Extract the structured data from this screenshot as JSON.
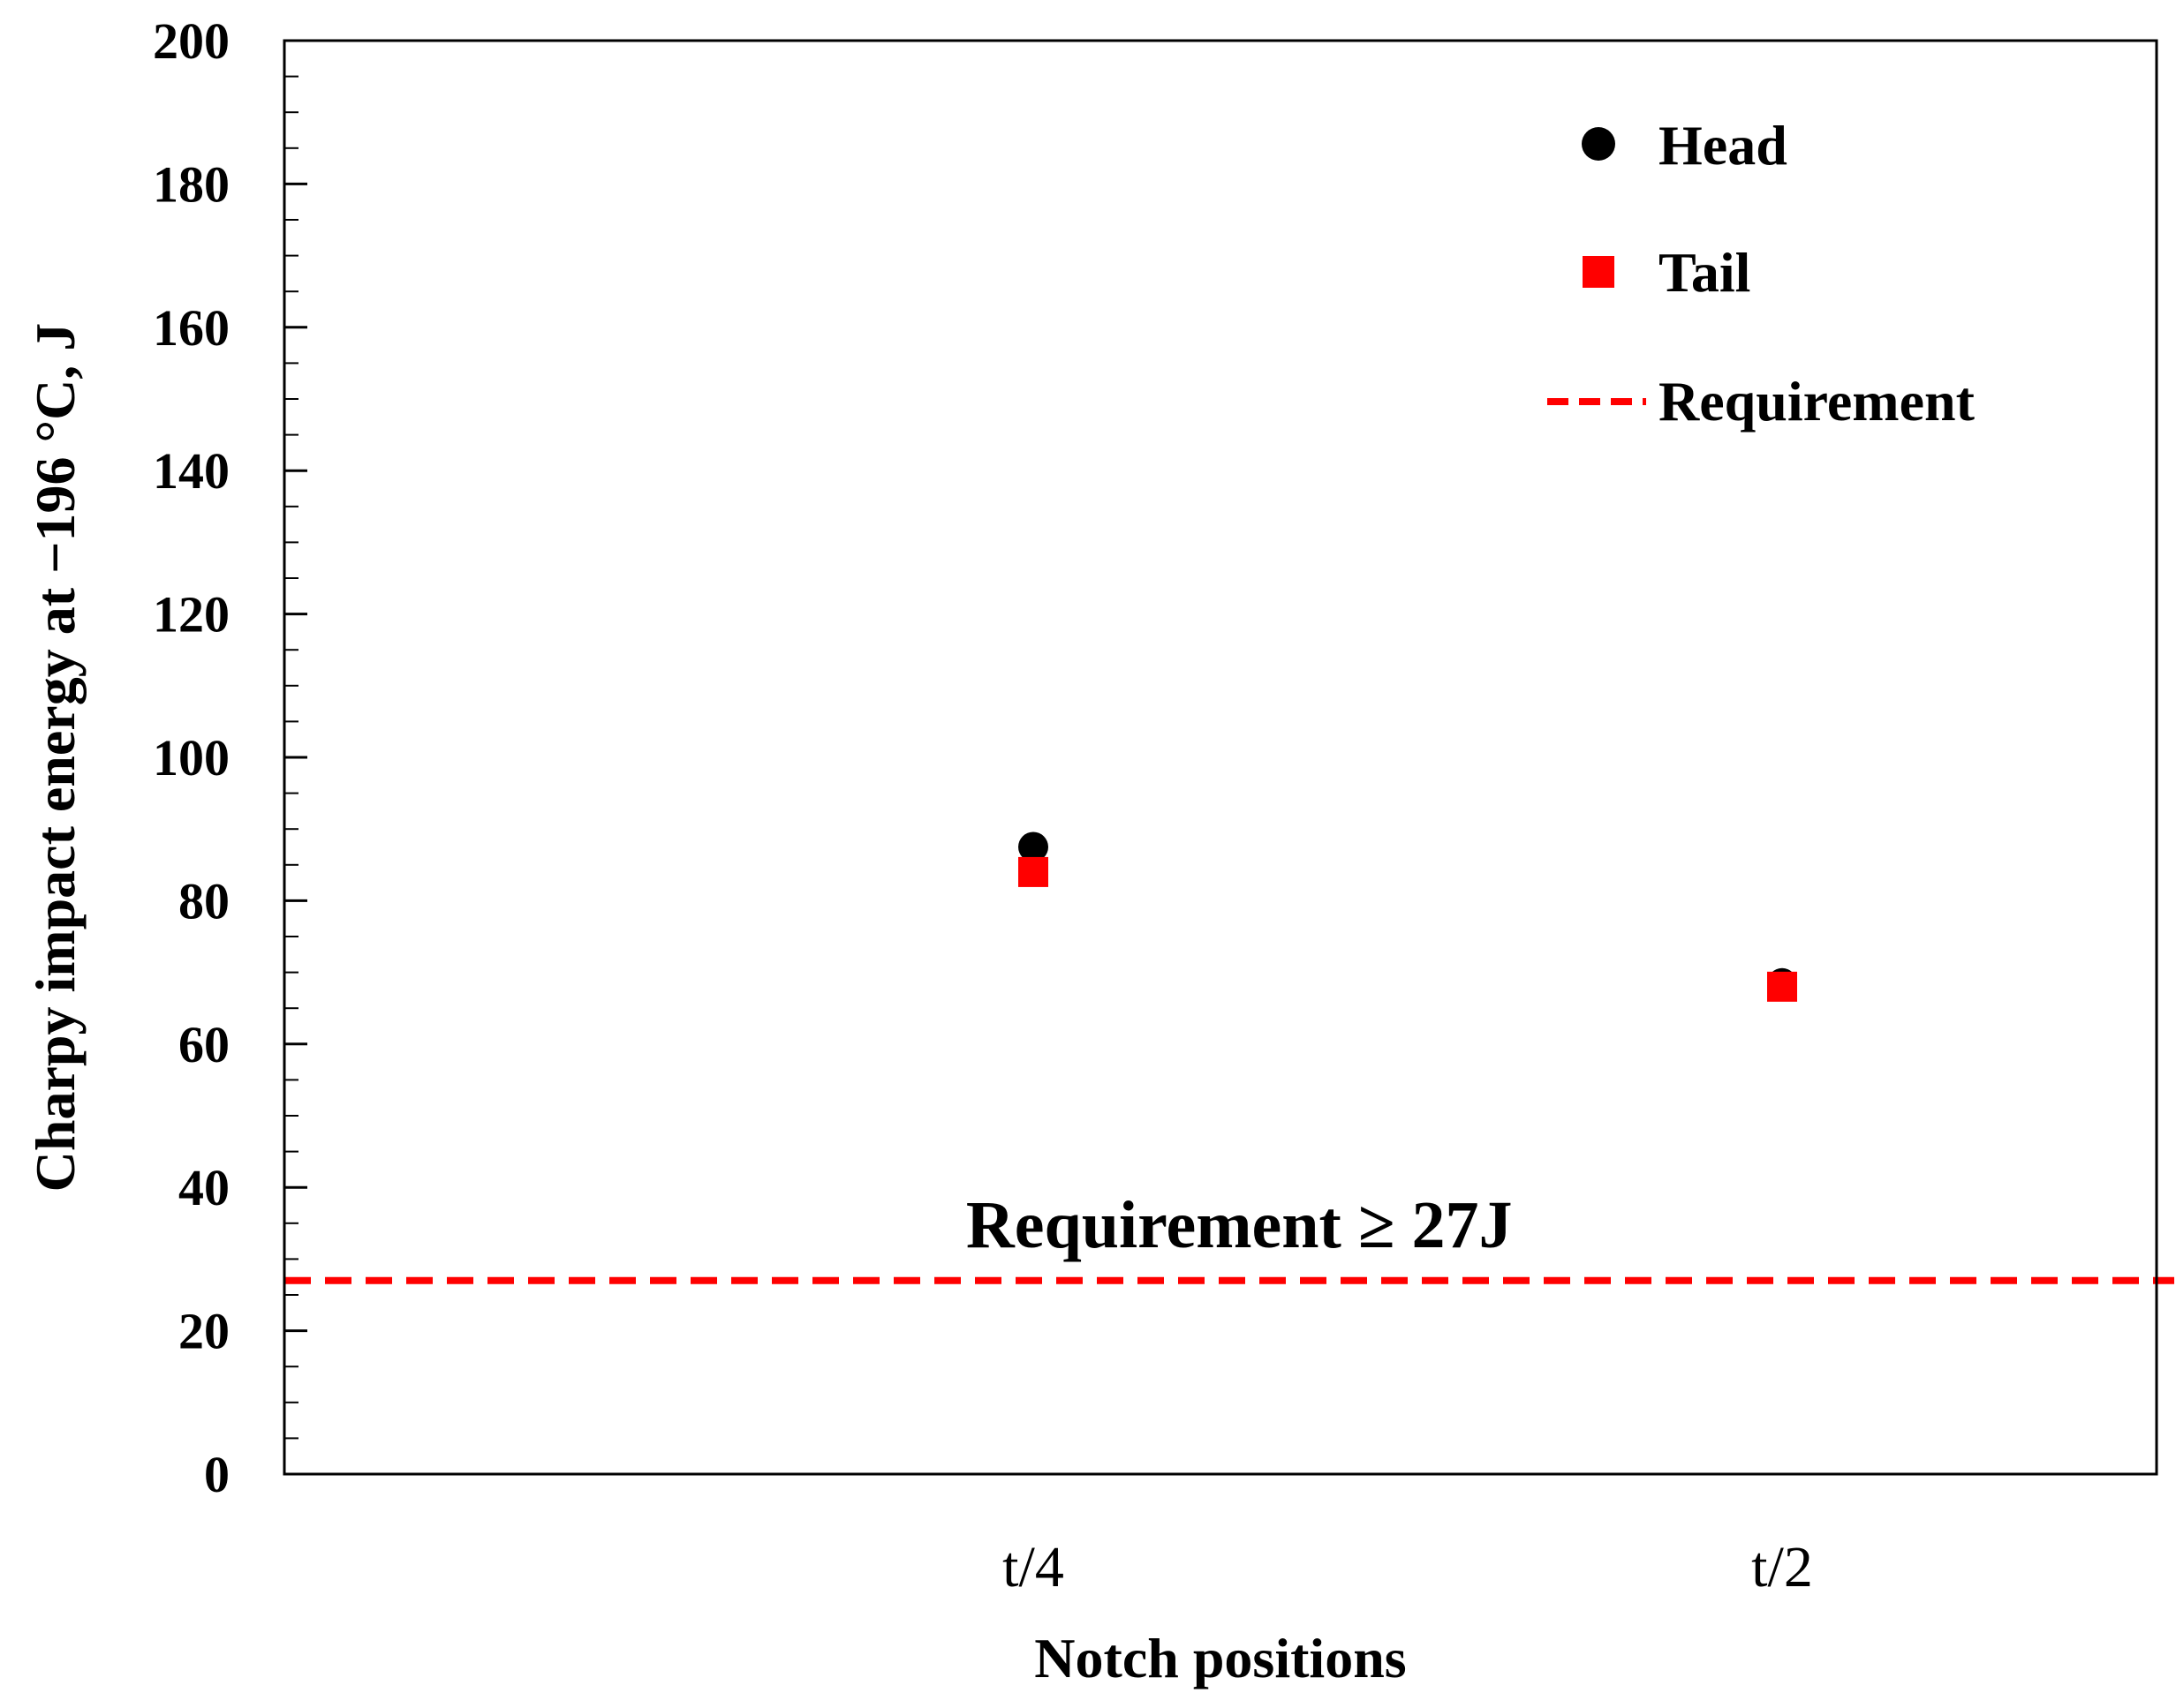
{
  "chart_data": {
    "type": "scatter",
    "xlabel": "Notch positions",
    "ylabel": "Charpy impact energy at −196 °C, J",
    "ylim": [
      0,
      200
    ],
    "yticks": [
      "0",
      "20",
      "40",
      "60",
      "80",
      "100",
      "120",
      "140",
      "160",
      "180",
      "200"
    ],
    "categories": [
      "t/4",
      "t/2"
    ],
    "series": [
      {
        "name": "Head",
        "marker": "circle",
        "color": "#000000",
        "values": [
          87.5,
          68.5
        ]
      },
      {
        "name": "Tail",
        "marker": "square",
        "color": "#ff0000",
        "values": [
          84,
          68
        ]
      }
    ],
    "reference_line": {
      "name": "Requirement",
      "value": 27,
      "color": "#ff0000",
      "style": "dashed"
    },
    "annotation": "Requirement ≥ 27J",
    "legend_position": "top-right",
    "grid": false
  }
}
